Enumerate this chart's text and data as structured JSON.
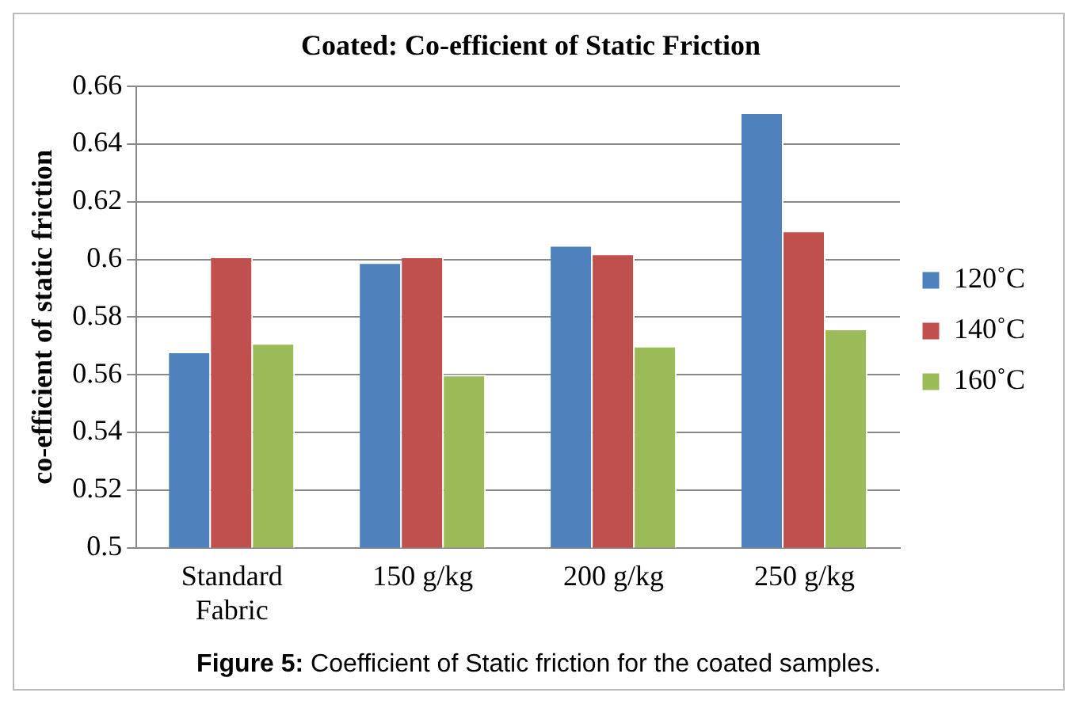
{
  "chart_data": {
    "type": "bar",
    "title": "Coated: Co-efficient of Static Friction",
    "ylabel": "co-efficient of static friction",
    "categories": [
      "Standard Fabric",
      "150 g/kg",
      "200 g/kg",
      "250 g/kg"
    ],
    "series": [
      {
        "name": "120˚C",
        "color": "#4f81bd",
        "values": [
          0.568,
          0.599,
          0.605,
          0.651
        ]
      },
      {
        "name": "140˚C",
        "color": "#c0504d",
        "values": [
          0.601,
          0.601,
          0.602,
          0.61
        ]
      },
      {
        "name": "160˚C",
        "color": "#9bbb59",
        "values": [
          0.571,
          0.56,
          0.57,
          0.576
        ]
      }
    ],
    "ylim": [
      0.5,
      0.66
    ],
    "yticks": [
      0.5,
      0.52,
      0.54,
      0.56,
      0.58,
      0.6,
      0.62,
      0.64,
      0.66
    ],
    "grid": "y",
    "legend": "right",
    "annotations": [
      "Figure 5: Coefficient of Static friction for the coated samples."
    ]
  }
}
